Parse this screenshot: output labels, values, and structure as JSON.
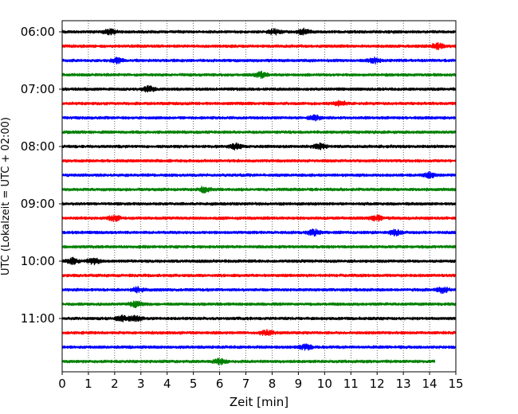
{
  "chart_data": {
    "type": "line",
    "xlabel": "Zeit  [min]",
    "ylabel": "UTC (Lokalzeit = UTC + 02:00)",
    "xlim": [
      0,
      15
    ],
    "x_ticks": [
      "0",
      "1",
      "2",
      "3",
      "4",
      "5",
      "6",
      "7",
      "8",
      "9",
      "10",
      "11",
      "12",
      "13",
      "14",
      "15"
    ],
    "y_ticks": [
      "06:00",
      "07:00",
      "08:00",
      "09:00",
      "10:00",
      "11:00"
    ],
    "grid": "vertical dotted",
    "row_minutes": 15,
    "trace_colors": [
      "#000000",
      "#ff0000",
      "#0000ff",
      "#008000"
    ],
    "series": [
      {
        "start": "06:00",
        "end_minute": 15,
        "events_min": [
          1.8,
          8.1,
          9.2
        ]
      },
      {
        "start": "06:15",
        "end_minute": 15,
        "events_min": [
          14.3
        ]
      },
      {
        "start": "06:30",
        "end_minute": 15,
        "events_min": [
          2.1,
          11.9
        ]
      },
      {
        "start": "06:45",
        "end_minute": 15,
        "events_min": [
          7.6
        ]
      },
      {
        "start": "07:00",
        "end_minute": 15,
        "events_min": [
          3.3
        ]
      },
      {
        "start": "07:15",
        "end_minute": 15,
        "events_min": [
          10.6
        ]
      },
      {
        "start": "07:30",
        "end_minute": 15,
        "events_min": [
          9.6
        ]
      },
      {
        "start": "07:45",
        "end_minute": 15,
        "events_min": []
      },
      {
        "start": "08:00",
        "end_minute": 15,
        "events_min": [
          6.6,
          9.8
        ]
      },
      {
        "start": "08:15",
        "end_minute": 15,
        "events_min": []
      },
      {
        "start": "08:30",
        "end_minute": 15,
        "events_min": [
          14.0
        ]
      },
      {
        "start": "08:45",
        "end_minute": 15,
        "events_min": [
          5.4
        ]
      },
      {
        "start": "09:00",
        "end_minute": 15,
        "events_min": []
      },
      {
        "start": "09:15",
        "end_minute": 15,
        "events_min": [
          2.0,
          12.0
        ]
      },
      {
        "start": "09:30",
        "end_minute": 15,
        "events_min": [
          9.6,
          12.7
        ]
      },
      {
        "start": "09:45",
        "end_minute": 15,
        "events_min": []
      },
      {
        "start": "10:00",
        "end_minute": 15,
        "events_min": [
          0.4,
          1.2
        ]
      },
      {
        "start": "10:15",
        "end_minute": 15,
        "events_min": []
      },
      {
        "start": "10:30",
        "end_minute": 15,
        "events_min": [
          2.9,
          14.5
        ]
      },
      {
        "start": "10:45",
        "end_minute": 15,
        "events_min": [
          2.8
        ]
      },
      {
        "start": "11:00",
        "end_minute": 15,
        "events_min": [
          2.3,
          2.8
        ]
      },
      {
        "start": "11:15",
        "end_minute": 15,
        "events_min": [
          7.8
        ]
      },
      {
        "start": "11:30",
        "end_minute": 15,
        "events_min": [
          9.3
        ]
      },
      {
        "start": "11:45",
        "end_minute": 14.2,
        "events_min": [
          6.0
        ]
      }
    ]
  }
}
